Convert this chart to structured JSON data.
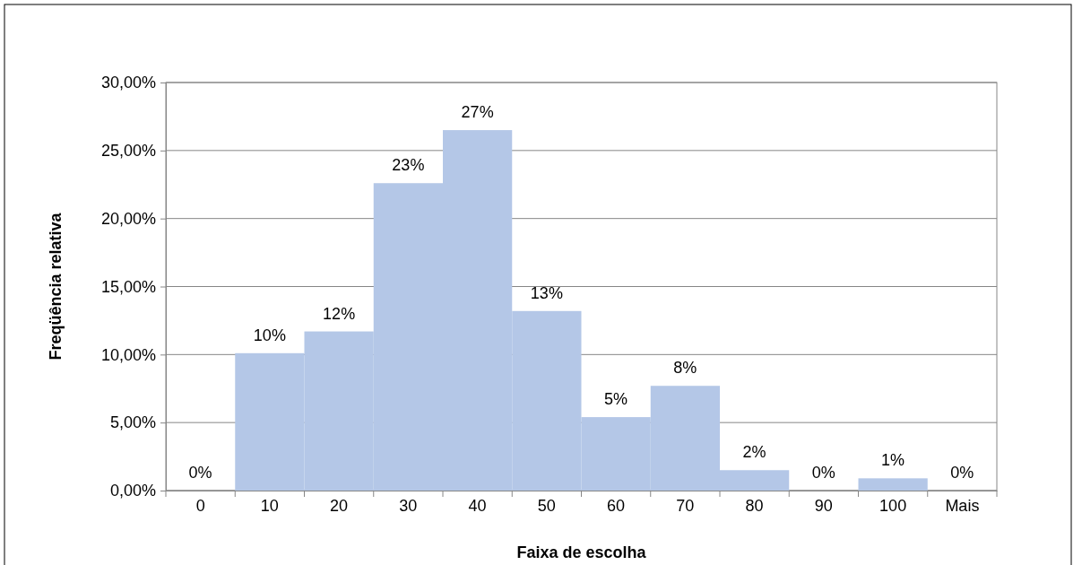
{
  "chart_data": {
    "type": "bar",
    "xlabel": "Faixa de escolha",
    "ylabel": "Freqüência relativa",
    "categories": [
      "0",
      "10",
      "20",
      "30",
      "40",
      "50",
      "60",
      "70",
      "80",
      "90",
      "100",
      "Mais"
    ],
    "values": [
      0,
      10.1,
      11.7,
      22.6,
      26.5,
      13.2,
      5.4,
      7.7,
      1.5,
      0,
      0.9,
      0
    ],
    "value_labels": [
      "0%",
      "10%",
      "12%",
      "23%",
      "27%",
      "13%",
      "5%",
      "8%",
      "2%",
      "0%",
      "1%",
      "0%"
    ],
    "color": "#b4c7e7",
    "ylim": [
      0,
      30
    ],
    "yticks": [
      {
        "value": 0,
        "label": "0,00%"
      },
      {
        "value": 5,
        "label": "5,00%"
      },
      {
        "value": 10,
        "label": "10,00%"
      },
      {
        "value": 15,
        "label": "15,00%"
      },
      {
        "value": 20,
        "label": "20,00%"
      },
      {
        "value": 25,
        "label": "25,00%"
      },
      {
        "value": 30,
        "label": "30,00%"
      }
    ],
    "grid": "y"
  }
}
